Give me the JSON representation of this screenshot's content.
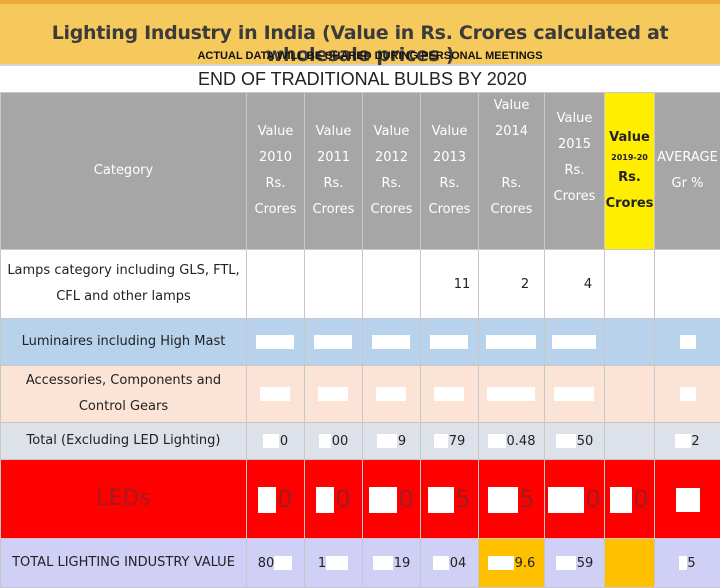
{
  "title": "Lighting Industry in India (Value in Rs. Crores calculated at wholesale prices )",
  "disclaimer": "ACTUAL DATA WILL BE SHARED DURING PERSONAL MEETINGS",
  "subtitle": "END OF TRADITIONAL BULBS BY 2020",
  "header": {
    "category": "Category",
    "cols": [
      {
        "l1": "Value",
        "l2": "2010",
        "l3": "Rs.",
        "l4": "Crores"
      },
      {
        "l1": "Value",
        "l2": "2011",
        "l3": "Rs.",
        "l4": "Crores"
      },
      {
        "l1": "Value",
        "l2": "2012",
        "l3": "Rs.",
        "l4": "Crores"
      },
      {
        "l1": "Value",
        "l2": "2013",
        "l3": "Rs.",
        "l4": "Crores"
      },
      {
        "l1": "Value 2014",
        "l2": "",
        "l3": "Rs. Crores",
        "l4": ""
      },
      {
        "l1": "Value",
        "l2": "2015",
        "l3": "Rs. Crores",
        "l4": ""
      }
    ],
    "forecast": {
      "l1": "Value",
      "l2": "2019-20",
      "l3": "Rs.",
      "l4": "Crores"
    },
    "average": {
      "l1": "AVERAGE",
      "l2": "Gr %"
    }
  },
  "rows": {
    "lamps": {
      "label": "Lamps category including GLS, FTL, CFL and other lamps",
      "v2013": "11",
      "v2014": "2",
      "v2015": "4"
    },
    "luminaires": {
      "label": "Luminaires including High Mast"
    },
    "accessories": {
      "label": "Accessories, Components and Control Gears"
    },
    "total": {
      "label": "Total (Excluding LED Lighting)",
      "v2010": "0",
      "v2011": "00",
      "v2012": "9",
      "v2013": "79",
      "v2014": "0.48",
      "v2015": "50",
      "avg": "2"
    },
    "leds": {
      "label": "LEDs",
      "v2010": "0",
      "v2011": "0",
      "v2012": "0",
      "v2013": "5",
      "v2014": "5",
      "v2015": "0",
      "forecast": "0"
    },
    "grand": {
      "label": "TOTAL LIGHTING INDUSTRY VALUE",
      "v2010": "80",
      "v2011": "1",
      "v2012": "19",
      "v2013": "04",
      "v2014": "9.6",
      "v2015": "59",
      "avg": "5"
    }
  },
  "colors": {
    "title_bg": "#f6c95c",
    "header_bg": "#a6a6a6",
    "forecast_header": "#ffee00",
    "led_row": "#ff0000",
    "grand_row": "#d0cff6",
    "gold_cells": "#ffc000"
  }
}
